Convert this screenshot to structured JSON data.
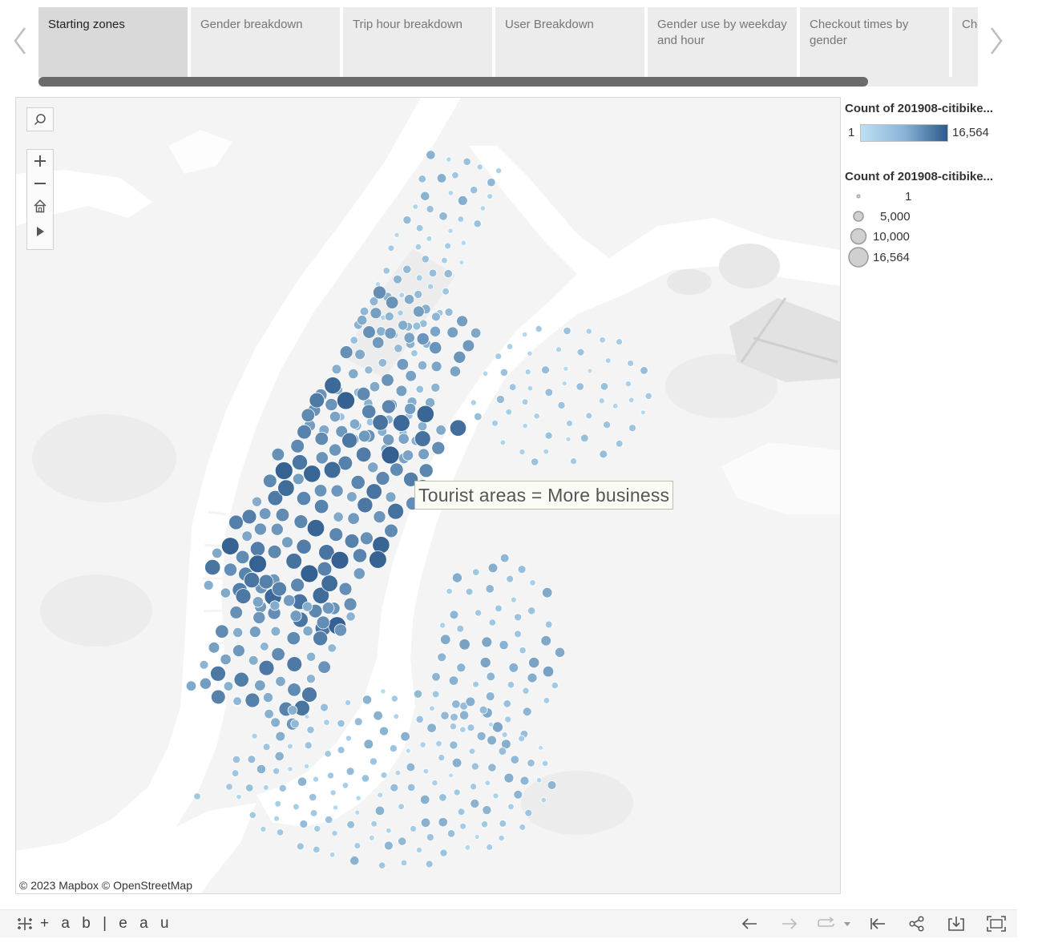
{
  "story": {
    "tabs": [
      {
        "label": "Starting zones",
        "active": true
      },
      {
        "label": "Gender breakdown",
        "active": false
      },
      {
        "label": "Trip hour breakdown",
        "active": false
      },
      {
        "label": "User Breakdown",
        "active": false
      },
      {
        "label": "Gender use by weekday and hour",
        "active": false
      },
      {
        "label": "Checkout times by gender",
        "active": false
      },
      {
        "label": "Che use",
        "active": false
      }
    ]
  },
  "map": {
    "annotation": "Tourist areas = More business",
    "attribution": "© 2023 Mapbox  © OpenStreetMap",
    "colors": {
      "land": "#f4f4f4",
      "water": "#ffffff",
      "park": "#ececec",
      "mark_light": "#a9d4ee",
      "mark_dark": "#2f5c8f"
    }
  },
  "legend": {
    "color_title": "Count of 201908-citibike...",
    "color_min": "1",
    "color_max": "16,564",
    "size_title": "Count of 201908-citibike...",
    "size_items": [
      {
        "label": "1",
        "value": 1
      },
      {
        "label": "5,000",
        "value": 5000
      },
      {
        "label": "10,000",
        "value": 10000
      },
      {
        "label": "16,564",
        "value": 16564
      }
    ]
  },
  "toolbar": {
    "logo_text": "+ a b | e a u",
    "icons": [
      "undo-icon",
      "redo-icon",
      "revert-icon",
      "reset-icon",
      "share-icon",
      "download-icon",
      "fullscreen-icon"
    ]
  }
}
